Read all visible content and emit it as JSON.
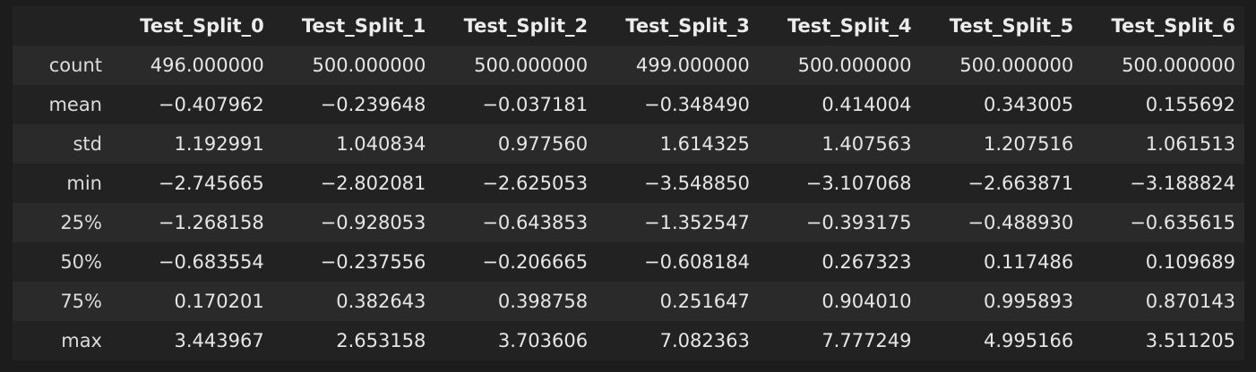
{
  "table": {
    "columns": [
      "Test_Split_0",
      "Test_Split_1",
      "Test_Split_2",
      "Test_Split_3",
      "Test_Split_4",
      "Test_Split_5",
      "Test_Split_6"
    ],
    "rows": [
      {
        "label": "count",
        "values": [
          "496.000000",
          "500.000000",
          "500.000000",
          "499.000000",
          "500.000000",
          "500.000000",
          "500.000000"
        ]
      },
      {
        "label": "mean",
        "values": [
          "−0.407962",
          "−0.239648",
          "−0.037181",
          "−0.348490",
          "0.414004",
          "0.343005",
          "0.155692"
        ]
      },
      {
        "label": "std",
        "values": [
          "1.192991",
          "1.040834",
          "0.977560",
          "1.614325",
          "1.407563",
          "1.207516",
          "1.061513"
        ]
      },
      {
        "label": "min",
        "values": [
          "−2.745665",
          "−2.802081",
          "−2.625053",
          "−3.548850",
          "−3.107068",
          "−2.663871",
          "−3.188824"
        ]
      },
      {
        "label": "25%",
        "values": [
          "−1.268158",
          "−0.928053",
          "−0.643853",
          "−1.352547",
          "−0.393175",
          "−0.488930",
          "−0.635615"
        ]
      },
      {
        "label": "50%",
        "values": [
          "−0.683554",
          "−0.237556",
          "−0.206665",
          "−0.608184",
          "0.267323",
          "0.117486",
          "0.109689"
        ]
      },
      {
        "label": "75%",
        "values": [
          "0.170201",
          "0.382643",
          "0.398758",
          "0.251647",
          "0.904010",
          "0.995893",
          "0.870143"
        ]
      },
      {
        "label": "max",
        "values": [
          "3.443967",
          "2.653158",
          "3.703606",
          "7.082363",
          "7.777249",
          "4.995166",
          "3.511205"
        ]
      }
    ]
  }
}
